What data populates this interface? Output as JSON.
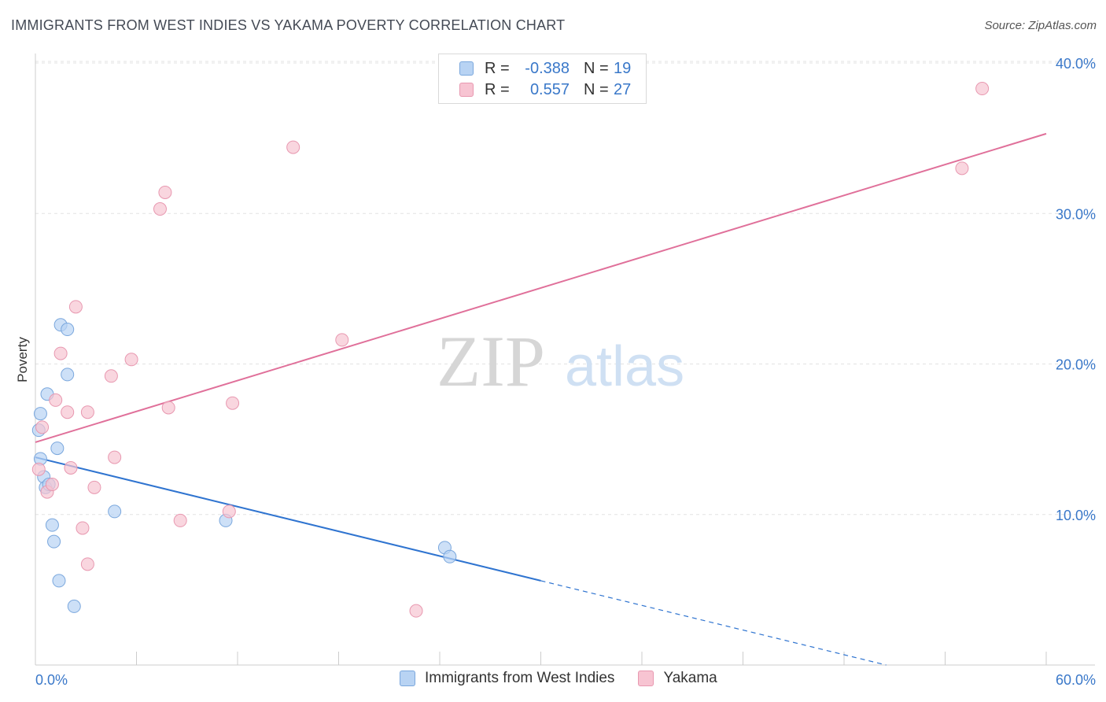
{
  "title": "IMMIGRANTS FROM WEST INDIES VS YAKAMA POVERTY CORRELATION CHART",
  "source": "Source: ZipAtlas.com",
  "watermark": {
    "zip": "ZIP",
    "atlas": "atlas"
  },
  "legend": {
    "series1": {
      "r_label": "R =",
      "r_value": "-0.388",
      "n_label": "N =",
      "n_value": "19"
    },
    "series2": {
      "r_label": "R =",
      "r_value": "0.557",
      "n_label": "N =",
      "n_value": "27"
    }
  },
  "colors": {
    "blue_fill": "#b8d3f3",
    "blue_stroke": "#7aa7dd",
    "blue_line": "#2f74d0",
    "pink_fill": "#f7c4d2",
    "pink_stroke": "#e898b0",
    "pink_line": "#e0709a",
    "axis_text": "#3a78c9"
  },
  "chart_data": {
    "type": "scatter",
    "title": "IMMIGRANTS FROM WEST INDIES VS YAKAMA POVERTY CORRELATION CHART",
    "xlabel": "",
    "ylabel": "Poverty",
    "xlim": [
      0,
      60
    ],
    "ylim": [
      0,
      40
    ],
    "x_tick_labels": [
      "0.0%",
      "60.0%"
    ],
    "y_ticks": [
      10,
      20,
      30,
      40
    ],
    "y_tick_labels": [
      "10.0%",
      "20.0%",
      "30.0%",
      "40.0%"
    ],
    "grid": true,
    "series": [
      {
        "name": "Immigrants from West Indies",
        "points": [
          [
            0.2,
            15.6
          ],
          [
            0.3,
            16.7
          ],
          [
            0.3,
            13.7
          ],
          [
            0.5,
            12.5
          ],
          [
            0.6,
            11.8
          ],
          [
            0.7,
            18.0
          ],
          [
            0.8,
            12.0
          ],
          [
            1.0,
            9.3
          ],
          [
            1.1,
            8.2
          ],
          [
            1.3,
            14.4
          ],
          [
            1.4,
            5.6
          ],
          [
            1.5,
            22.6
          ],
          [
            1.9,
            22.3
          ],
          [
            1.9,
            19.3
          ],
          [
            2.3,
            3.9
          ],
          [
            4.7,
            10.2
          ],
          [
            11.3,
            9.6
          ],
          [
            24.3,
            7.8
          ],
          [
            24.6,
            7.2
          ]
        ],
        "trend": {
          "x0": 0,
          "y0": 13.8,
          "x1": 30,
          "y1": 5.6,
          "dashed_to_x": 50.5,
          "dashed_to_y": 0
        }
      },
      {
        "name": "Yakama",
        "points": [
          [
            0.2,
            13.0
          ],
          [
            0.4,
            15.8
          ],
          [
            0.7,
            11.5
          ],
          [
            1.0,
            12.0
          ],
          [
            1.2,
            17.6
          ],
          [
            1.5,
            20.7
          ],
          [
            1.9,
            16.8
          ],
          [
            2.1,
            13.1
          ],
          [
            2.4,
            23.8
          ],
          [
            2.8,
            9.1
          ],
          [
            3.1,
            6.7
          ],
          [
            3.1,
            16.8
          ],
          [
            3.5,
            11.8
          ],
          [
            4.5,
            19.2
          ],
          [
            4.7,
            13.8
          ],
          [
            5.7,
            20.3
          ],
          [
            7.4,
            30.3
          ],
          [
            7.7,
            31.4
          ],
          [
            7.9,
            17.1
          ],
          [
            8.6,
            9.6
          ],
          [
            11.5,
            10.2
          ],
          [
            11.7,
            17.4
          ],
          [
            15.3,
            34.4
          ],
          [
            18.2,
            21.6
          ],
          [
            22.6,
            3.6
          ],
          [
            55.0,
            33.0
          ],
          [
            56.2,
            38.3
          ]
        ],
        "trend": {
          "x0": 0,
          "y0": 14.8,
          "x1": 60,
          "y1": 35.3
        }
      }
    ]
  }
}
